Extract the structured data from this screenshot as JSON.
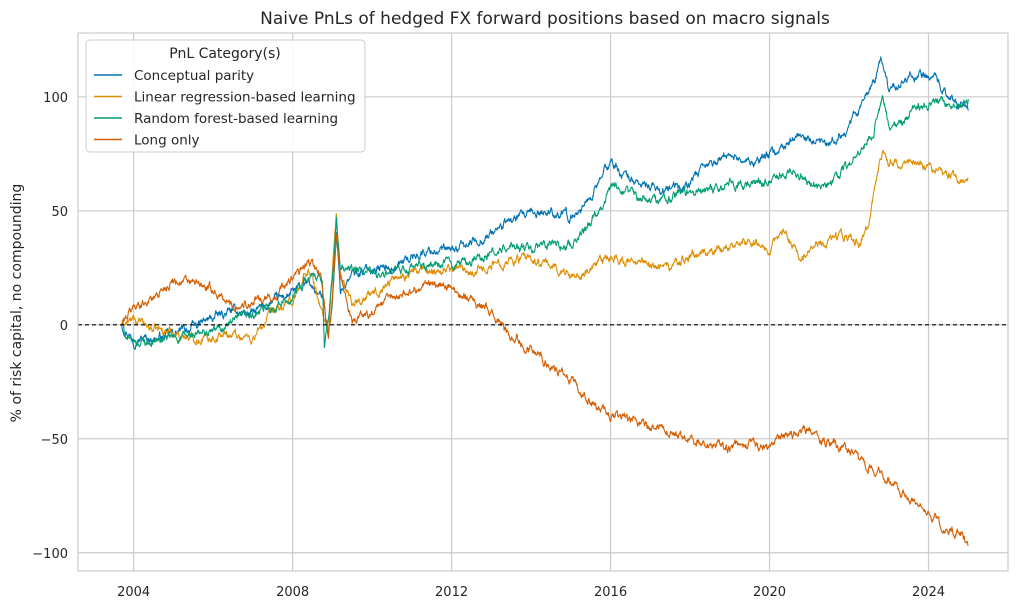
{
  "chart_data": {
    "type": "line",
    "title": "Naive PnLs of hedged FX forward positions based on macro signals",
    "xlabel": "",
    "ylabel": "% of risk capital, no compounding",
    "xlim": [
      2002.6,
      2026.0
    ],
    "ylim": [
      -108,
      128
    ],
    "x_ticks": [
      2004,
      2008,
      2012,
      2016,
      2020,
      2024
    ],
    "y_ticks": [
      -100,
      -50,
      0,
      50,
      100
    ],
    "x_tick_labels": [
      "2004",
      "2008",
      "2012",
      "2016",
      "2020",
      "2024"
    ],
    "y_tick_labels": [
      "−100",
      "−50",
      "0",
      "50",
      "100"
    ],
    "grid": true,
    "reference_line": {
      "y": 0,
      "style": "dashed",
      "color": "#000000"
    },
    "legend": {
      "title": "PnL Category(s)",
      "placement": "top-left"
    },
    "series": [
      {
        "name": "Conceptual parity",
        "color": "#0173b2",
        "points": [
          [
            2003.7,
            0
          ],
          [
            2004.0,
            -6
          ],
          [
            2004.5,
            -6
          ],
          [
            2005.0,
            -4
          ],
          [
            2005.5,
            -1
          ],
          [
            2006.0,
            3
          ],
          [
            2006.5,
            6
          ],
          [
            2007.0,
            5
          ],
          [
            2007.5,
            10
          ],
          [
            2008.0,
            14
          ],
          [
            2008.4,
            18
          ],
          [
            2008.75,
            12
          ],
          [
            2008.9,
            -3
          ],
          [
            2009.0,
            10
          ],
          [
            2009.1,
            40
          ],
          [
            2009.2,
            15
          ],
          [
            2009.5,
            22
          ],
          [
            2010.0,
            25
          ],
          [
            2010.5,
            25
          ],
          [
            2011.0,
            30
          ],
          [
            2011.5,
            33
          ],
          [
            2012.0,
            32
          ],
          [
            2012.5,
            36
          ],
          [
            2013.0,
            40
          ],
          [
            2013.5,
            46
          ],
          [
            2014.0,
            48
          ],
          [
            2014.5,
            50
          ],
          [
            2015.0,
            47
          ],
          [
            2015.5,
            56
          ],
          [
            2016.0,
            72
          ],
          [
            2016.3,
            66
          ],
          [
            2016.7,
            62
          ],
          [
            2017.0,
            60
          ],
          [
            2017.5,
            59
          ],
          [
            2018.0,
            62
          ],
          [
            2018.5,
            70
          ],
          [
            2019.0,
            75
          ],
          [
            2019.5,
            71
          ],
          [
            2020.0,
            74
          ],
          [
            2020.3,
            78
          ],
          [
            2020.7,
            82
          ],
          [
            2021.0,
            80
          ],
          [
            2021.5,
            78
          ],
          [
            2022.0,
            88
          ],
          [
            2022.3,
            95
          ],
          [
            2022.6,
            105
          ],
          [
            2022.8,
            116
          ],
          [
            2023.0,
            104
          ],
          [
            2023.3,
            106
          ],
          [
            2023.6,
            110
          ],
          [
            2024.0,
            110
          ],
          [
            2024.4,
            104
          ],
          [
            2024.7,
            96
          ],
          [
            2025.0,
            94
          ]
        ]
      },
      {
        "name": "Linear regression-based learning",
        "color": "#de8f05",
        "points": [
          [
            2003.7,
            0
          ],
          [
            2004.0,
            2
          ],
          [
            2004.5,
            -2
          ],
          [
            2005.0,
            -3
          ],
          [
            2005.5,
            -6
          ],
          [
            2006.0,
            -5
          ],
          [
            2006.5,
            -4
          ],
          [
            2007.0,
            -6
          ],
          [
            2007.5,
            5
          ],
          [
            2008.0,
            10
          ],
          [
            2008.4,
            25
          ],
          [
            2008.75,
            5
          ],
          [
            2008.9,
            -3
          ],
          [
            2009.0,
            22
          ],
          [
            2009.1,
            48
          ],
          [
            2009.2,
            22
          ],
          [
            2009.5,
            10
          ],
          [
            2010.0,
            13
          ],
          [
            2010.5,
            20
          ],
          [
            2011.0,
            23
          ],
          [
            2011.5,
            24
          ],
          [
            2012.0,
            25
          ],
          [
            2012.5,
            24
          ],
          [
            2013.0,
            26
          ],
          [
            2013.5,
            29
          ],
          [
            2014.0,
            28
          ],
          [
            2014.5,
            26
          ],
          [
            2015.0,
            22
          ],
          [
            2015.5,
            24
          ],
          [
            2016.0,
            30
          ],
          [
            2016.5,
            27
          ],
          [
            2017.0,
            27
          ],
          [
            2017.5,
            25
          ],
          [
            2018.0,
            30
          ],
          [
            2018.5,
            32
          ],
          [
            2019.0,
            35
          ],
          [
            2019.5,
            37
          ],
          [
            2020.0,
            34
          ],
          [
            2020.4,
            40
          ],
          [
            2020.8,
            30
          ],
          [
            2021.0,
            35
          ],
          [
            2021.5,
            37
          ],
          [
            2022.0,
            38
          ],
          [
            2022.3,
            36
          ],
          [
            2022.5,
            45
          ],
          [
            2022.7,
            65
          ],
          [
            2022.85,
            77
          ],
          [
            2023.0,
            70
          ],
          [
            2023.4,
            72
          ],
          [
            2023.8,
            70
          ],
          [
            2024.0,
            70
          ],
          [
            2024.4,
            65
          ],
          [
            2024.7,
            65
          ],
          [
            2025.0,
            64
          ]
        ]
      },
      {
        "name": "Random forest-based learning",
        "color": "#029e73",
        "points": [
          [
            2003.7,
            0
          ],
          [
            2003.9,
            -8
          ],
          [
            2004.5,
            -7
          ],
          [
            2005.0,
            -6
          ],
          [
            2005.5,
            -5
          ],
          [
            2006.0,
            -3
          ],
          [
            2006.5,
            1
          ],
          [
            2007.0,
            4
          ],
          [
            2007.5,
            8
          ],
          [
            2008.0,
            12
          ],
          [
            2008.4,
            22
          ],
          [
            2008.75,
            18
          ],
          [
            2008.8,
            -10
          ],
          [
            2009.0,
            20
          ],
          [
            2009.1,
            45
          ],
          [
            2009.2,
            25
          ],
          [
            2009.5,
            24
          ],
          [
            2010.0,
            22
          ],
          [
            2010.5,
            22
          ],
          [
            2011.0,
            25
          ],
          [
            2011.5,
            26
          ],
          [
            2012.0,
            27
          ],
          [
            2012.5,
            28
          ],
          [
            2013.0,
            31
          ],
          [
            2013.5,
            34
          ],
          [
            2014.0,
            33
          ],
          [
            2014.5,
            35
          ],
          [
            2015.0,
            35
          ],
          [
            2015.5,
            46
          ],
          [
            2016.0,
            60
          ],
          [
            2016.5,
            57
          ],
          [
            2017.0,
            55
          ],
          [
            2017.5,
            56
          ],
          [
            2018.0,
            58
          ],
          [
            2018.5,
            60
          ],
          [
            2019.0,
            63
          ],
          [
            2019.5,
            61
          ],
          [
            2020.0,
            64
          ],
          [
            2020.5,
            67
          ],
          [
            2021.0,
            63
          ],
          [
            2021.5,
            62
          ],
          [
            2022.0,
            70
          ],
          [
            2022.3,
            75
          ],
          [
            2022.6,
            85
          ],
          [
            2022.85,
            98
          ],
          [
            2023.0,
            88
          ],
          [
            2023.4,
            90
          ],
          [
            2023.8,
            96
          ],
          [
            2024.0,
            98
          ],
          [
            2024.4,
            97
          ],
          [
            2024.7,
            96
          ],
          [
            2025.0,
            99
          ]
        ]
      },
      {
        "name": "Long only",
        "color": "#d55e00",
        "points": [
          [
            2003.7,
            0
          ],
          [
            2004.0,
            8
          ],
          [
            2004.5,
            12
          ],
          [
            2005.0,
            20
          ],
          [
            2005.5,
            18
          ],
          [
            2006.0,
            15
          ],
          [
            2006.5,
            8
          ],
          [
            2007.0,
            10
          ],
          [
            2007.5,
            12
          ],
          [
            2008.0,
            20
          ],
          [
            2008.4,
            27
          ],
          [
            2008.7,
            23
          ],
          [
            2008.9,
            -5
          ],
          [
            2009.0,
            10
          ],
          [
            2009.1,
            40
          ],
          [
            2009.2,
            20
          ],
          [
            2009.5,
            2
          ],
          [
            2010.0,
            6
          ],
          [
            2010.5,
            12
          ],
          [
            2011.0,
            15
          ],
          [
            2011.5,
            19
          ],
          [
            2012.0,
            16
          ],
          [
            2012.5,
            12
          ],
          [
            2013.0,
            5
          ],
          [
            2013.5,
            -5
          ],
          [
            2014.0,
            -10
          ],
          [
            2014.5,
            -18
          ],
          [
            2015.0,
            -25
          ],
          [
            2015.5,
            -35
          ],
          [
            2016.0,
            -40
          ],
          [
            2016.5,
            -42
          ],
          [
            2017.0,
            -45
          ],
          [
            2017.5,
            -47
          ],
          [
            2018.0,
            -50
          ],
          [
            2018.5,
            -52
          ],
          [
            2019.0,
            -54
          ],
          [
            2019.5,
            -53
          ],
          [
            2020.0,
            -55
          ],
          [
            2020.3,
            -50
          ],
          [
            2020.7,
            -48
          ],
          [
            2021.0,
            -46
          ],
          [
            2021.5,
            -52
          ],
          [
            2022.0,
            -55
          ],
          [
            2022.3,
            -60
          ],
          [
            2022.6,
            -63
          ],
          [
            2023.0,
            -68
          ],
          [
            2023.4,
            -75
          ],
          [
            2023.8,
            -80
          ],
          [
            2024.0,
            -82
          ],
          [
            2024.4,
            -90
          ],
          [
            2024.7,
            -90
          ],
          [
            2025.0,
            -97
          ]
        ]
      }
    ]
  }
}
